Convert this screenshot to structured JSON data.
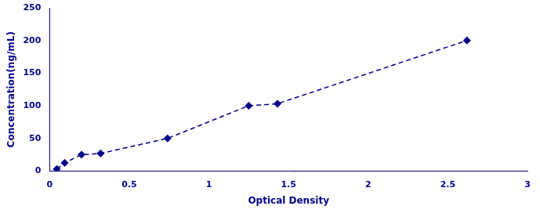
{
  "chart_data": {
    "type": "line",
    "x": [
      0.045,
      0.094,
      0.2,
      0.32,
      0.74,
      1.25,
      1.43,
      2.62
    ],
    "values": [
      3.12,
      12.5,
      25.0,
      27.0,
      50.0,
      100.0,
      103.0,
      200.0
    ],
    "color": "#00008B",
    "marker": "diamond",
    "line_style": "dashed",
    "xlabel": "Optical Density",
    "ylabel": "Concentration(ng/mL)",
    "xlim": [
      0,
      3
    ],
    "xticks": [
      0,
      0.5,
      1,
      1.5,
      2,
      2.5,
      3
    ],
    "ylim": [
      0,
      250
    ],
    "yticks": [
      0,
      50,
      100,
      150,
      200,
      250
    ],
    "grid": false
  }
}
